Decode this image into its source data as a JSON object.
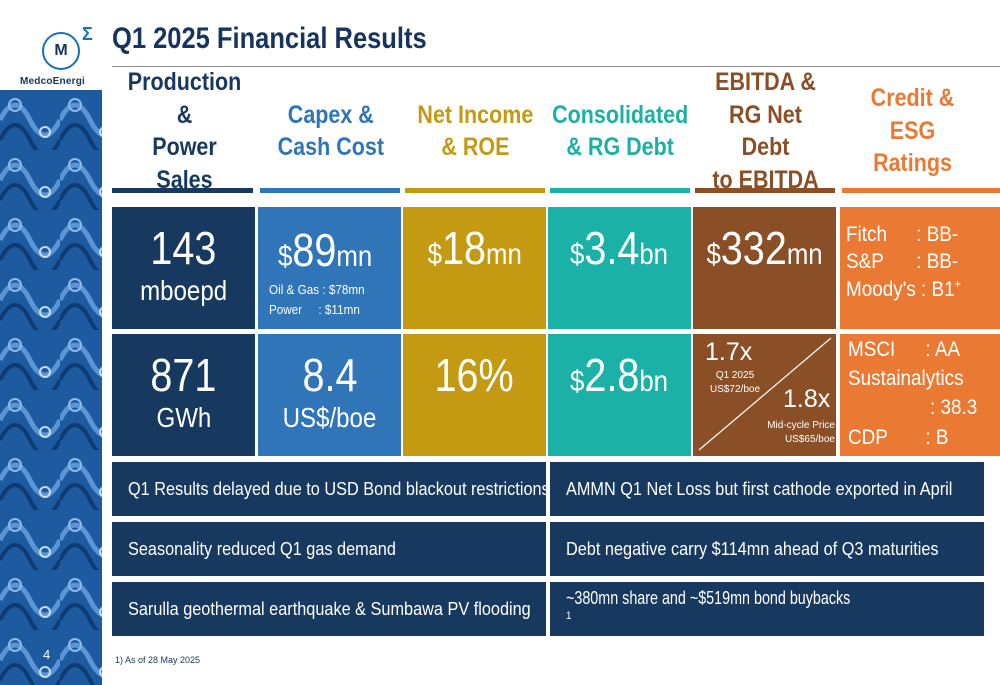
{
  "brand": {
    "logo_text": "MedcoEnergi",
    "logo_letter": "M",
    "logo_sigma": "Σ"
  },
  "title": "Q1 2025 Financial Results",
  "columns": [
    {
      "label": "Production &\nPower Sales",
      "color": "#17385f"
    },
    {
      "label": "Capex &\nCash Cost",
      "color": "#2f75b8"
    },
    {
      "label": "Net Income\n& ROE",
      "color": "#c39a12"
    },
    {
      "label": "Consolidated\n& RG Debt",
      "color": "#1bb1a6"
    },
    {
      "label": "EBITDA &\nRG Net Debt\nto EBITDA",
      "color": "#8a4f26"
    },
    {
      "label": "Credit &\nESG Ratings",
      "color": "#ea7a33"
    }
  ],
  "production": {
    "value": "143",
    "unit": "mboepd",
    "power_value": "871",
    "power_unit": "GWh"
  },
  "capex": {
    "prefix": "$",
    "value": "89",
    "unit": "mn",
    "oil_gas": "Oil & Gas : $78mn",
    "power": "Power     : $11mn",
    "cash_cost": "8.4",
    "cash_cost_unit": "US$/boe"
  },
  "net_income": {
    "prefix": "$",
    "value": "18",
    "unit": "mn",
    "roe": "16%"
  },
  "debt": {
    "prefix": "$",
    "consolidated": "3.4",
    "consolidated_unit": "bn",
    "rg": "2.8",
    "rg_unit": "bn"
  },
  "ebitda": {
    "prefix": "$",
    "value": "332",
    "unit": "mn",
    "ratio_q1": "1.7x",
    "ratio_q1_label1": "Q1 2025",
    "ratio_q1_label2": "US$72/boe",
    "ratio_mid": "1.8x",
    "ratio_mid_label1": "Mid-cycle Price",
    "ratio_mid_label2": "US$65/boe"
  },
  "credit": [
    {
      "agency": "Fitch",
      "rating": ": BB-"
    },
    {
      "agency": "S&P",
      "rating": ": BB-"
    },
    {
      "agency": "Moody's",
      "rating": ": B1",
      "sup": "+"
    }
  ],
  "esg": [
    {
      "agency": "MSCI",
      "rating": ": AA"
    },
    {
      "agency": "Sustainalytics",
      "rating": ""
    },
    {
      "agency": "",
      "rating": ": 38.3"
    },
    {
      "agency": "CDP",
      "rating": ": B"
    }
  ],
  "highlights_left": [
    "Q1 Results delayed due to USD Bond blackout restrictions",
    "Seasonality reduced Q1 gas demand",
    "Sarulla geothermal earthquake & Sumbawa PV flooding"
  ],
  "highlights_right": [
    "AMMN Q1 Net Loss but first cathode exported in April",
    "Debt negative carry $114mn ahead of Q3 maturities",
    "~380mn share and ~$519mn bond buybacks"
  ],
  "highlight_right_sup": "1",
  "page_number": "4",
  "footnote": "1)  As of 28 May 2025"
}
